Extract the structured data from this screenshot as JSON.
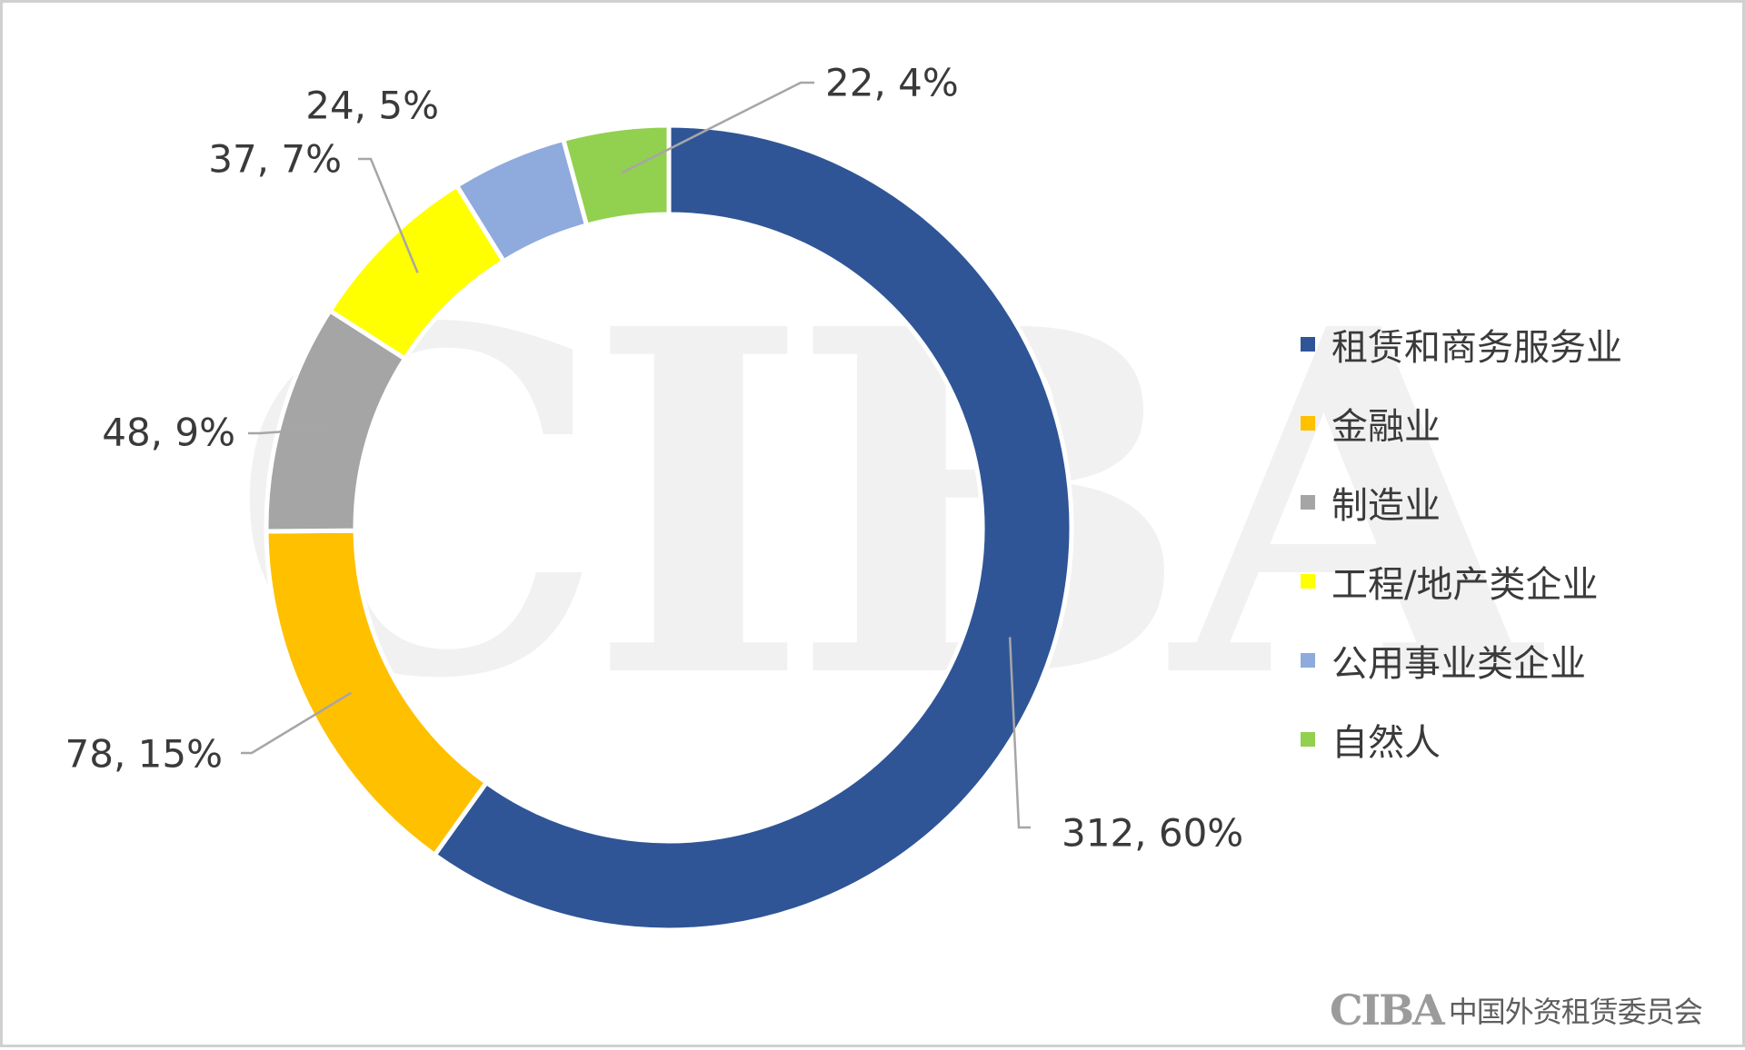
{
  "chart_data": {
    "type": "donut",
    "title": "",
    "categories": [
      "租赁和商务服务业",
      "金融业",
      "制造业",
      "工程/地产类企业",
      "公用事业类企业",
      "自然人"
    ],
    "values": [
      312,
      78,
      48,
      37,
      24,
      22
    ],
    "percents": [
      60,
      15,
      9,
      7,
      5,
      4
    ],
    "labels": [
      "312, 60%",
      "78, 15%",
      "48, 9%",
      "37, 7%",
      "24, 5%",
      "22, 4%"
    ],
    "colors": [
      "#2f5597",
      "#ffc000",
      "#a5a5a5",
      "#ffff00",
      "#8faadc",
      "#92d050"
    ],
    "legend_position": "right"
  },
  "legend": {
    "items": [
      {
        "label": "租赁和商务服务业",
        "color": "#2f5597"
      },
      {
        "label": "金融业",
        "color": "#ffc000"
      },
      {
        "label": "制造业",
        "color": "#a5a5a5"
      },
      {
        "label": "工程/地产类企业",
        "color": "#ffff00"
      },
      {
        "label": "公用事业类企业",
        "color": "#8faadc"
      },
      {
        "label": "自然人",
        "color": "#92d050"
      }
    ]
  },
  "watermark": {
    "text": "CIBA"
  },
  "brand": {
    "mark": "CIBA",
    "name": "中国外资租赁委员会"
  }
}
